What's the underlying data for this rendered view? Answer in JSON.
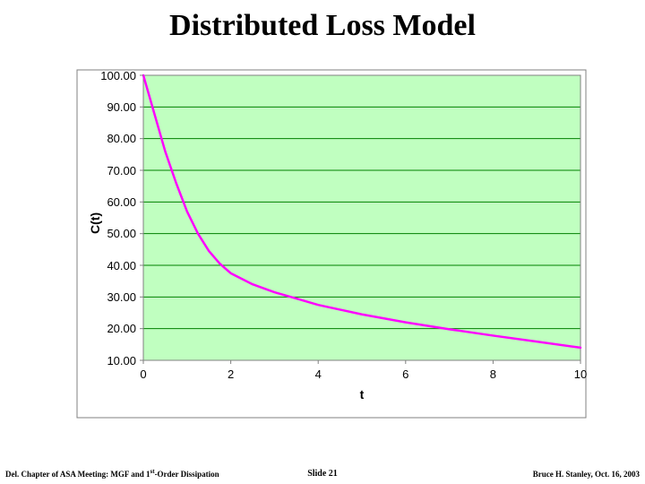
{
  "title": {
    "text": "Distributed Loss Model",
    "fontsize": 34
  },
  "chart": {
    "type": "line",
    "plot_background": "#c0ffc0",
    "outer_border_color": "#808080",
    "plot_border_color": "#808080",
    "grid_color": "#008000",
    "grid_width": 1,
    "line_color": "#ff00ff",
    "line_width": 2.5,
    "xlim": [
      0,
      10
    ],
    "ylim": [
      10,
      100
    ],
    "xtick_step": 2,
    "ytick_step": 10,
    "xticks": [
      0,
      2,
      4,
      6,
      8,
      10
    ],
    "yticks": [
      10,
      20,
      30,
      40,
      50,
      60,
      70,
      80,
      90,
      100
    ],
    "ytick_format": "fixed2",
    "xlabel": "t",
    "ylabel": "C(t)",
    "label_fontsize": 14,
    "tick_fontsize": 13,
    "data": {
      "t": [
        0.0,
        0.25,
        0.5,
        0.75,
        1.0,
        1.25,
        1.5,
        1.75,
        2.0,
        2.5,
        3.0,
        3.5,
        4.0,
        5.0,
        6.0,
        7.0,
        8.0,
        9.0,
        10.0
      ],
      "c": [
        100.0,
        88.0,
        76.0,
        66.0,
        57.0,
        50.0,
        44.5,
        40.5,
        37.5,
        34.0,
        31.5,
        29.5,
        27.5,
        24.5,
        22.0,
        19.8,
        17.8,
        15.9,
        14.0
      ]
    }
  },
  "footer": {
    "left_pre": "Del. Chapter of ASA Meeting: MGF and 1",
    "left_sup": "st",
    "left_post": "-Order Dissipation",
    "center": "Slide 21",
    "right": "Bruce H. Stanley, Oct. 16, 2003"
  }
}
